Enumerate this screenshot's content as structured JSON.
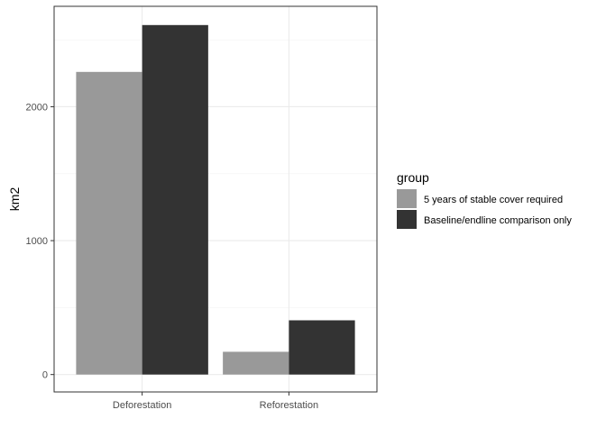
{
  "chart_data": {
    "type": "bar",
    "categories": [
      "Deforestation",
      "Reforestation"
    ],
    "series": [
      {
        "name": "5 years of stable cover required",
        "values": [
          2260,
          170
        ],
        "color": "#999999"
      },
      {
        "name": "Baseline/endline comparison only",
        "values": [
          2610,
          405
        ],
        "color": "#333333"
      }
    ],
    "xlabel": "",
    "ylabel": "km2",
    "ylim": [
      -130,
      2750
    ],
    "yticks": [
      0,
      1000,
      2000
    ],
    "ytick_labels": [
      "0",
      "1000",
      "2000"
    ],
    "legend_title": "group",
    "legend_position": "right",
    "grid": true
  }
}
